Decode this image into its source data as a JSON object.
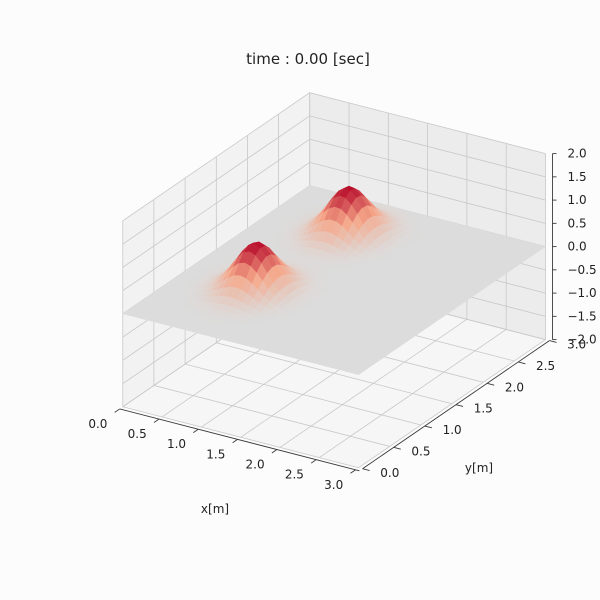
{
  "chart_data": {
    "type": "surface3d",
    "title": "time : 0.00 [sec]",
    "xlabel": "x[m]",
    "ylabel": "y[m]",
    "zlabel": "",
    "xlim": [
      0,
      3
    ],
    "ylim": [
      0,
      3
    ],
    "zlim": [
      -2,
      2
    ],
    "xticks": [
      "0.0",
      "0.5",
      "1.0",
      "1.5",
      "2.0",
      "2.5",
      "3.0"
    ],
    "yticks": [
      "0.0",
      "0.5",
      "1.0",
      "1.5",
      "2.0",
      "2.5",
      "3.0"
    ],
    "zticks": [
      "−2.0",
      "−1.5",
      "−1.0",
      "−0.5",
      "0.0",
      "0.5",
      "1.0",
      "1.5",
      "2.0"
    ],
    "grid": true,
    "colormap": "coolwarm",
    "surface": {
      "base_color": "#dcdcdc",
      "peak_color": "#b40426",
      "peaks": [
        {
          "x": 0.9,
          "y": 1.0,
          "height": 1.0
        },
        {
          "x": 1.0,
          "y": 2.35,
          "height": 1.0
        }
      ]
    }
  }
}
